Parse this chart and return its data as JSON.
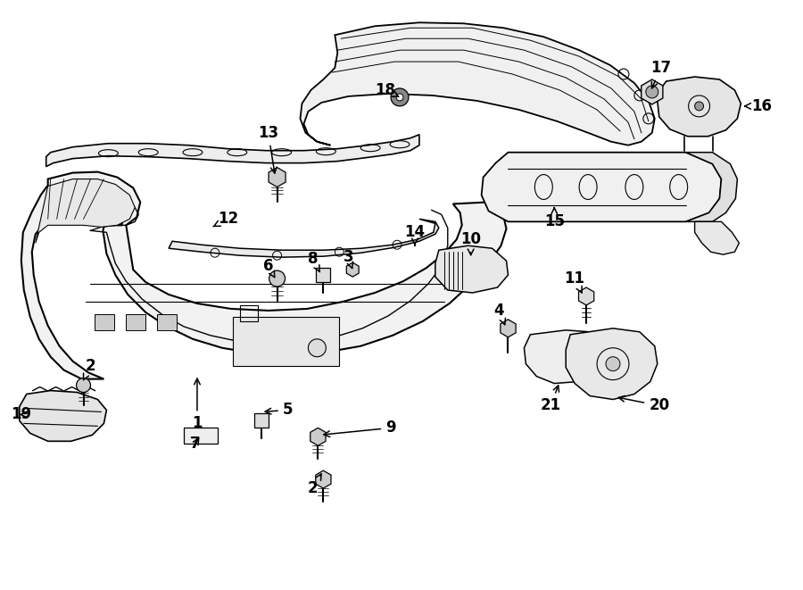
{
  "bg_color": "#ffffff",
  "fig_width": 9.0,
  "fig_height": 6.61,
  "dpi": 100
}
